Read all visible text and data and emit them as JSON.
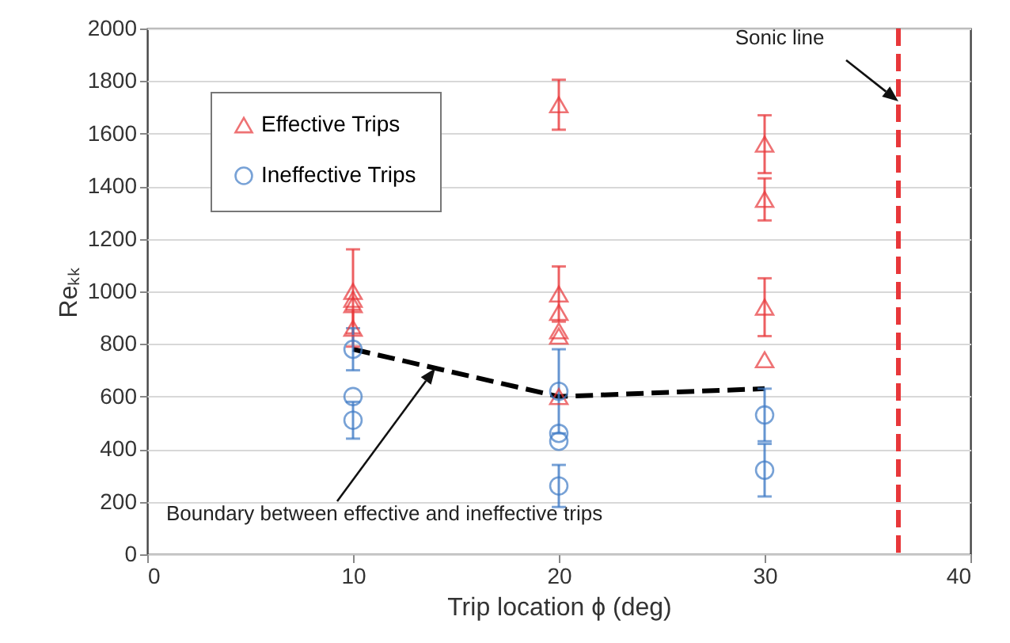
{
  "chart_data": {
    "type": "scatter",
    "xlabel": "Trip location ϕ (deg)",
    "ylabel": "Reₖₖ",
    "xlim": [
      0,
      40
    ],
    "ylim": [
      0,
      2000
    ],
    "xticks": [
      0,
      10,
      20,
      30,
      40
    ],
    "yticks": [
      0,
      200,
      400,
      600,
      800,
      1000,
      1200,
      1400,
      1600,
      1800,
      2000
    ],
    "grid": "y",
    "legend": "top left",
    "series": [
      {
        "name": "Effective Trips",
        "type": "scatter",
        "marker": "triangle",
        "color": "#e8373a",
        "x": [
          10,
          10,
          10,
          10,
          20,
          20,
          20,
          20,
          20,
          20,
          30,
          30,
          30,
          30
        ],
        "values": [
          1000,
          970,
          950,
          860,
          1710,
          990,
          920,
          850,
          830,
          600,
          1560,
          1350,
          940,
          740
        ],
        "errors": [
          160,
          null,
          null,
          70,
          95,
          105,
          null,
          null,
          null,
          null,
          110,
          80,
          110,
          null
        ]
      },
      {
        "name": "Ineffective Trips",
        "type": "scatter",
        "marker": "circle",
        "color": "#3f7bc6",
        "x": [
          10,
          10,
          10,
          20,
          20,
          20,
          20,
          30,
          30
        ],
        "values": [
          780,
          600,
          510,
          620,
          460,
          430,
          260,
          530,
          320
        ],
        "errors": [
          80,
          null,
          70,
          160,
          null,
          null,
          80,
          100,
          100
        ]
      },
      {
        "type": "line",
        "color": "#000000",
        "line_style": "dashed",
        "marker": "none",
        "x": [
          10,
          20,
          30
        ],
        "values": [
          780,
          600,
          630
        ]
      }
    ],
    "ref_lines": [
      {
        "axis": "x",
        "value": 36.5,
        "color": "#e8373a",
        "line_style": "dashed"
      }
    ],
    "annotations": [
      "Sonic line",
      "Boundary between effective and ineffective trips"
    ]
  }
}
